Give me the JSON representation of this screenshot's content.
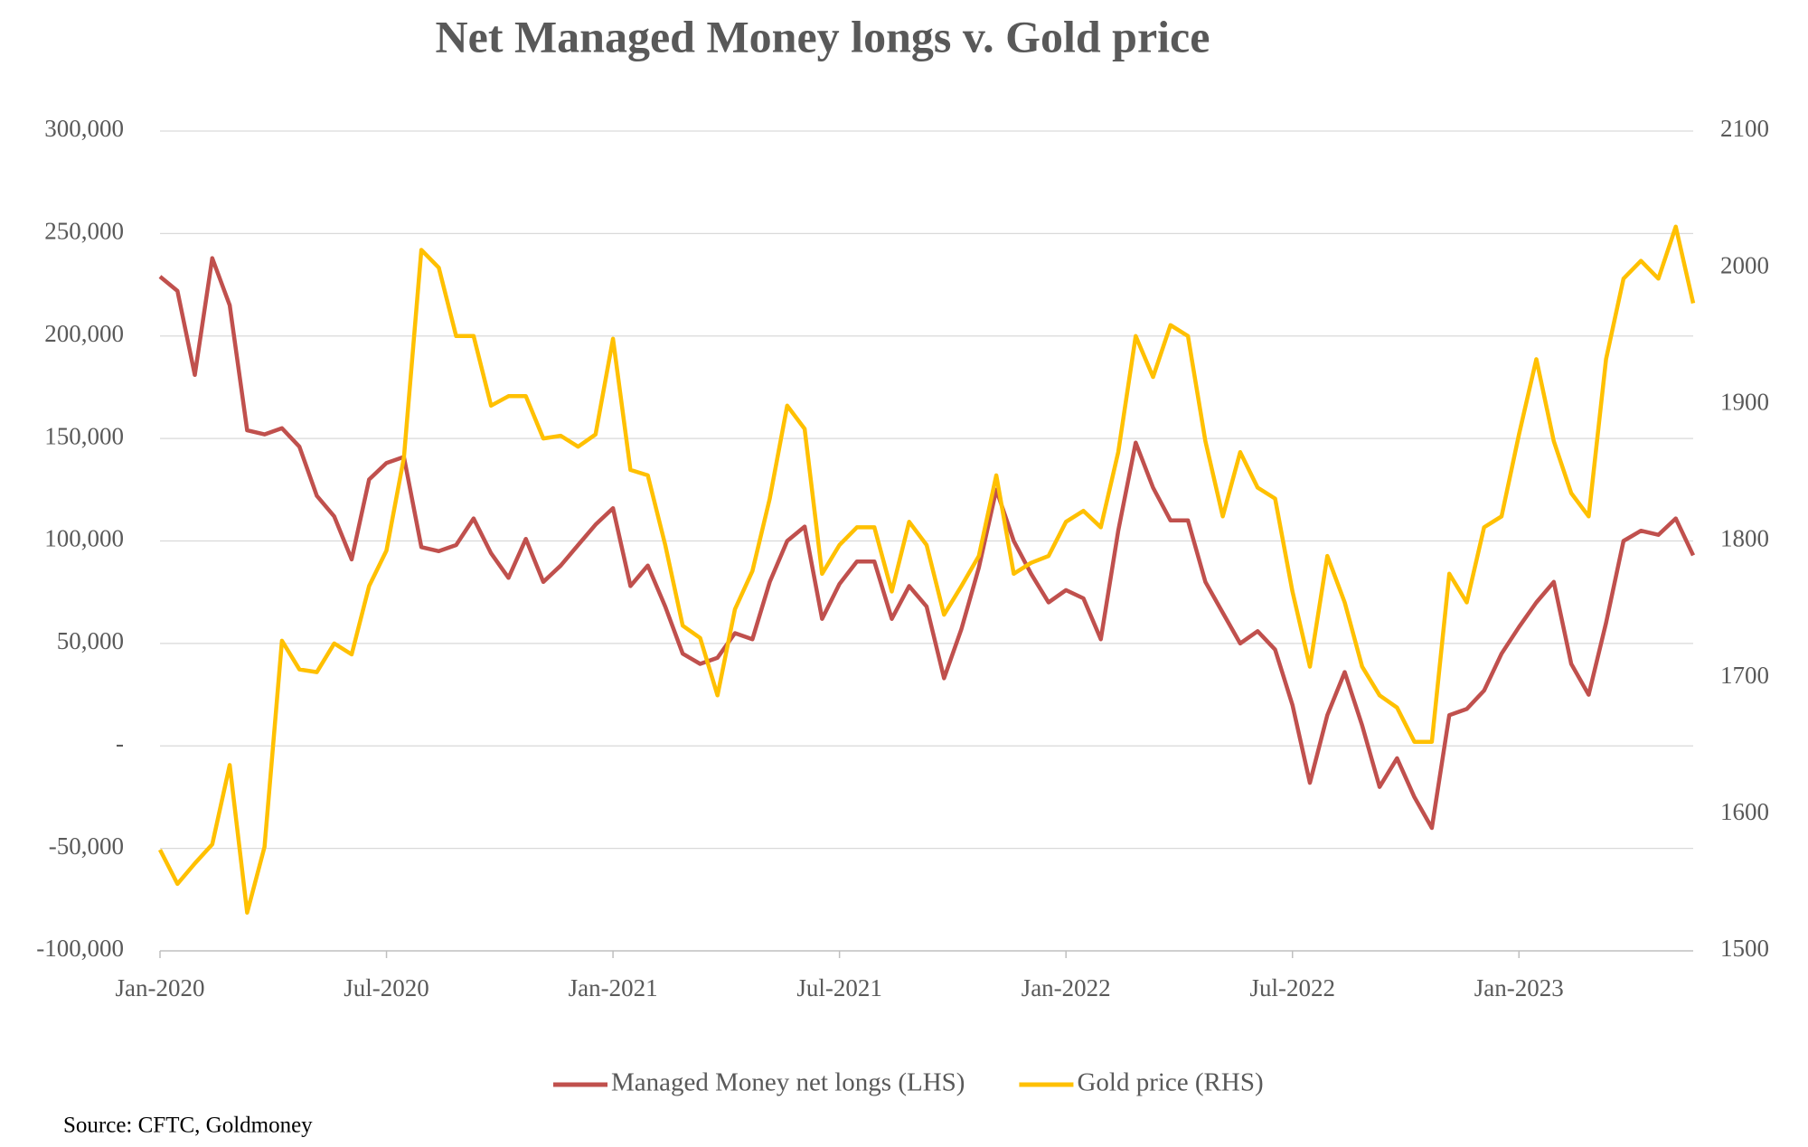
{
  "chart_data": {
    "type": "line",
    "title": "Net Managed Money longs v. Gold price",
    "source": "Source: CFTC, Goldmoney",
    "categories": [
      "Jan-2020",
      null,
      null,
      null,
      null,
      null,
      null,
      null,
      null,
      null,
      null,
      null,
      null,
      "Jul-2020",
      null,
      null,
      null,
      null,
      null,
      null,
      null,
      null,
      null,
      null,
      null,
      null,
      "Jan-2021",
      null,
      null,
      null,
      null,
      null,
      null,
      null,
      null,
      null,
      null,
      null,
      null,
      "Jul-2021",
      null,
      null,
      null,
      null,
      null,
      null,
      null,
      null,
      null,
      null,
      null,
      null,
      "Jan-2022",
      null,
      null,
      null,
      null,
      null,
      null,
      null,
      null,
      null,
      null,
      null,
      null,
      "Jul-2022",
      null,
      null,
      null,
      null,
      null,
      null,
      null,
      null,
      null,
      null,
      null,
      null,
      "Jan-2023",
      null,
      null,
      null,
      null,
      null,
      null,
      null,
      null,
      null,
      null
    ],
    "series": [
      {
        "name": "Managed Money net longs (LHS)",
        "color": "#C0504D",
        "axis": "y",
        "values": [
          229000,
          222000,
          181000,
          238000,
          215000,
          154000,
          152000,
          155000,
          146000,
          122000,
          112000,
          91000,
          130000,
          138000,
          141000,
          97000,
          95000,
          98000,
          111000,
          94000,
          82000,
          101000,
          80000,
          88000,
          98000,
          108000,
          116000,
          78000,
          88000,
          68000,
          45000,
          40000,
          43000,
          55000,
          52000,
          80000,
          100000,
          107000,
          62000,
          79000,
          90000,
          90000,
          62000,
          78000,
          68000,
          33000,
          57000,
          87000,
          125000,
          100000,
          84000,
          70000,
          76000,
          72000,
          52000,
          105000,
          148000,
          126000,
          110000,
          110000,
          80000,
          65000,
          50000,
          56000,
          47000,
          20000,
          -18000,
          15000,
          36000,
          10000,
          -20000,
          -6000,
          -25000,
          -40000,
          15000,
          18000,
          27000,
          45000,
          58000,
          70000,
          80000,
          40000,
          25000,
          60000,
          100000,
          105000,
          103000,
          111000,
          93000
        ]
      },
      {
        "name": "Gold price (RHS)",
        "color": "#FFC000",
        "axis": "y2",
        "values": [
          1574,
          1549,
          1564,
          1578,
          1636,
          1528,
          1576,
          1727,
          1706,
          1704,
          1725,
          1717,
          1767,
          1793,
          1861,
          2013,
          2000,
          1950,
          1950,
          1899,
          1906,
          1906,
          1875,
          1877,
          1869,
          1878,
          1948,
          1852,
          1848,
          1797,
          1738,
          1729,
          1687,
          1750,
          1778,
          1831,
          1899,
          1882,
          1776,
          1797,
          1810,
          1810,
          1763,
          1814,
          1797,
          1746,
          1767,
          1789,
          1848,
          1776,
          1784,
          1789,
          1814,
          1822,
          1810,
          1865,
          1950,
          1920,
          1958,
          1950,
          1873,
          1818,
          1865,
          1839,
          1831,
          1763,
          1708,
          1789,
          1755,
          1708,
          1687,
          1678,
          1653,
          1653,
          1776,
          1755,
          1810,
          1818,
          1878,
          1933,
          1873,
          1835,
          1818,
          1933,
          1992,
          2005,
          1992,
          2030,
          1974
        ]
      }
    ],
    "ylim": [
      -100000,
      300000
    ],
    "yticks": [
      {
        "value": -100000,
        "label": "-100,000"
      },
      {
        "value": -50000,
        "label": "-50,000"
      },
      {
        "value": 0,
        "label": "-"
      },
      {
        "value": 50000,
        "label": "50,000"
      },
      {
        "value": 100000,
        "label": "100,000"
      },
      {
        "value": 150000,
        "label": "150,000"
      },
      {
        "value": 200000,
        "label": "200,000"
      },
      {
        "value": 250000,
        "label": "250,000"
      },
      {
        "value": 300000,
        "label": "300,000"
      }
    ],
    "y2lim": [
      1500,
      2100
    ],
    "y2ticks": [
      1500,
      1600,
      1700,
      1800,
      1900,
      2000,
      2100
    ],
    "grid": true,
    "legend": "bottom"
  }
}
